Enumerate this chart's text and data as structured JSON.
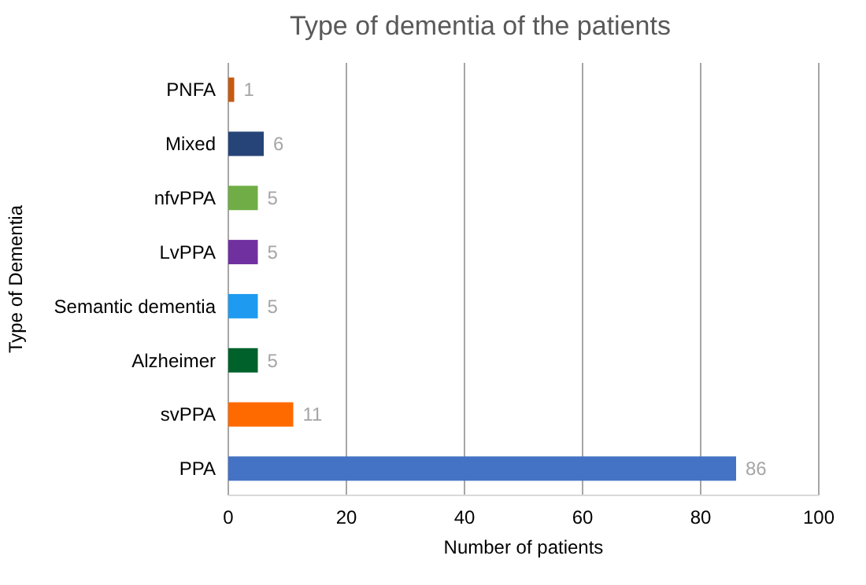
{
  "chart_data": {
    "type": "bar",
    "orientation": "horizontal",
    "title": "Type of dementia of the patients",
    "xlabel": "Number of patients",
    "ylabel": "Type of Dementia",
    "categories": [
      "PNFA",
      "Mixed",
      "nfvPPA",
      "LvPPA",
      "Semantic dementia",
      "Alzheimer",
      "svPPA",
      "PPA"
    ],
    "values": [
      1,
      6,
      5,
      5,
      5,
      5,
      11,
      86
    ],
    "colors": [
      "#c55a11",
      "#264478",
      "#70ad47",
      "#7030a0",
      "#1e9bf0",
      "#00612b",
      "#ff6a00",
      "#4472c4"
    ],
    "xlim": [
      0,
      100
    ],
    "xticks": [
      0,
      20,
      40,
      60,
      80,
      100
    ],
    "grid": "x",
    "data_labels": true
  }
}
